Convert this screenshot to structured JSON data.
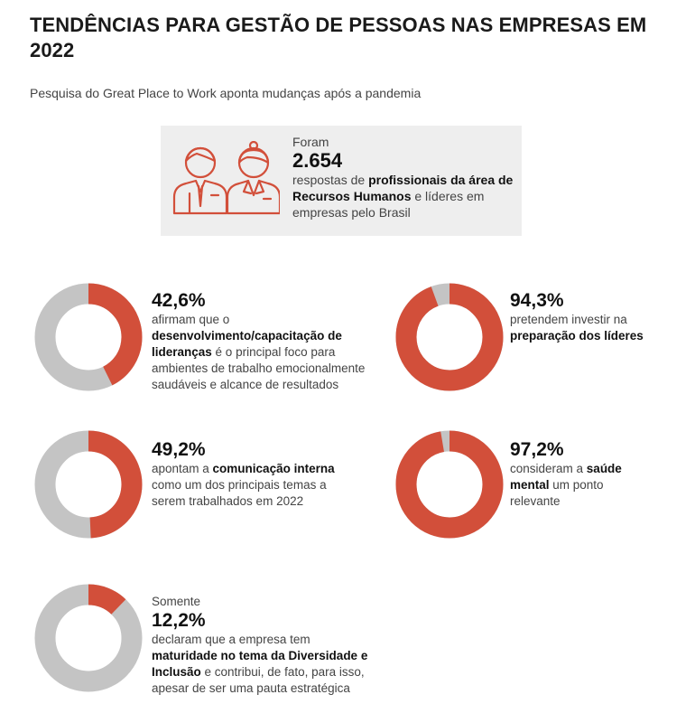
{
  "header": {
    "title": "TENDÊNCIAS PARA GESTÃO DE PESSOAS NAS EMPRESAS EM 2022",
    "subtitle": "Pesquisa do Great Place to Work aponta mudanças após a pandemia"
  },
  "colors": {
    "accent": "#d24f3a",
    "track": "#c4c4c4",
    "box": "#eeeeee"
  },
  "infobox": {
    "icon": "hr-professionals-icon",
    "pre": "Foram",
    "number": "2.654",
    "t1": "respostas de ",
    "b1": "profissionais da área de Recursos Humanos",
    "t2": " e líderes em empresas pelo Brasil"
  },
  "chart_data": [
    {
      "type": "pie",
      "values": [
        42.6,
        57.4
      ],
      "value_label": "42,6%",
      "parts": [
        [
          "afirmam que o ",
          false
        ],
        [
          "desenvolvimento/capacitação de lideranças",
          true
        ],
        [
          " é o principal foco para ambientes de trabalho emocionalmente saudáveis e alcance de resultados",
          false
        ]
      ]
    },
    {
      "type": "pie",
      "values": [
        94.3,
        5.7
      ],
      "value_label": "94,3%",
      "parts": [
        [
          "pretendem investir na ",
          false
        ],
        [
          "preparação dos líderes",
          true
        ]
      ]
    },
    {
      "type": "pie",
      "values": [
        49.2,
        50.8
      ],
      "value_label": "49,2%",
      "parts": [
        [
          "apontam a ",
          false
        ],
        [
          "comunicação interna",
          true
        ],
        [
          " como um dos principais temas a serem trabalhados em 2022",
          false
        ]
      ]
    },
    {
      "type": "pie",
      "values": [
        97.2,
        2.8
      ],
      "value_label": "97,2%",
      "parts": [
        [
          "consideram a ",
          false
        ],
        [
          "saúde mental",
          true
        ],
        [
          " um ponto relevante",
          false
        ]
      ]
    },
    {
      "type": "pie",
      "values": [
        12.2,
        87.8
      ],
      "pre": "Somente",
      "value_label": "12,2%",
      "parts": [
        [
          "declaram que a empresa tem ",
          false
        ],
        [
          "maturidade no tema da Diversidade e Inclusão",
          true
        ],
        [
          " e contribui, de fato, para isso, apesar de ser uma pauta estratégica",
          false
        ]
      ]
    }
  ]
}
